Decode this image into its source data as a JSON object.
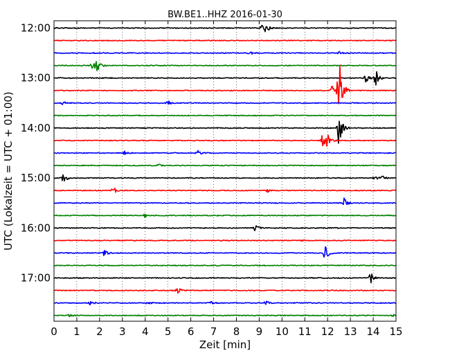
{
  "chart_data": {
    "type": "line",
    "title": "BW.BE1..HHZ 2016-01-30",
    "xlabel": "Zeit  [min]",
    "ylabel": "UTC (Lokalzeit = UTC + 01:00)",
    "xlim": [
      0,
      15
    ],
    "x_ticks": [
      "0",
      "1",
      "2",
      "3",
      "4",
      "5",
      "6",
      "7",
      "8",
      "9",
      "10",
      "11",
      "12",
      "13",
      "14",
      "15"
    ],
    "y_tick_labels": [
      "12:00",
      "13:00",
      "14:00",
      "15:00",
      "16:00",
      "17:00"
    ],
    "grid": true,
    "trace_colors": [
      "#000000",
      "#ff0000",
      "#0000ff",
      "#008000"
    ],
    "traces_per_hour": 4,
    "start_time": "12:00",
    "minutes_per_trace": 15,
    "traces": [
      {
        "start": "12:00",
        "events": [
          {
            "x": 9.1,
            "amp": 0.5
          },
          {
            "x": 9.3,
            "amp": 0.6
          }
        ]
      },
      {
        "start": "12:15",
        "events": []
      },
      {
        "start": "12:30",
        "events": [
          {
            "x": 8.6,
            "amp": 0.3
          },
          {
            "x": 12.5,
            "amp": 0.2
          }
        ]
      },
      {
        "start": "12:45",
        "events": [
          {
            "x": 1.7,
            "amp": 0.6
          },
          {
            "x": 1.9,
            "amp": 1.0
          }
        ]
      },
      {
        "start": "13:00",
        "events": [
          {
            "x": 13.7,
            "amp": 0.8
          },
          {
            "x": 14.1,
            "amp": 1.4
          }
        ]
      },
      {
        "start": "13:15",
        "events": [
          {
            "x": 12.2,
            "amp": 0.7
          },
          {
            "x": 12.5,
            "amp": 6.0
          }
        ]
      },
      {
        "start": "13:30",
        "events": [
          {
            "x": 0.4,
            "amp": 0.3
          },
          {
            "x": 5.0,
            "amp": 0.4
          }
        ]
      },
      {
        "start": "13:45",
        "events": []
      },
      {
        "start": "14:00",
        "events": [
          {
            "x": 12.5,
            "amp": 3.0
          }
        ]
      },
      {
        "start": "14:15",
        "events": [
          {
            "x": 11.8,
            "amp": 1.2
          },
          {
            "x": 12.0,
            "amp": 0.8
          }
        ]
      },
      {
        "start": "14:30",
        "events": [
          {
            "x": 3.1,
            "amp": 0.25
          },
          {
            "x": 6.3,
            "amp": 0.4
          }
        ]
      },
      {
        "start": "14:45",
        "events": [
          {
            "x": 4.6,
            "amp": 0.2
          }
        ]
      },
      {
        "start": "15:00",
        "events": [
          {
            "x": 0.4,
            "amp": 0.8
          },
          {
            "x": 14.1,
            "amp": 0.3
          },
          {
            "x": 14.4,
            "amp": 0.3
          }
        ]
      },
      {
        "start": "15:15",
        "events": [
          {
            "x": 2.6,
            "amp": 0.6
          },
          {
            "x": 9.4,
            "amp": 0.4
          }
        ]
      },
      {
        "start": "15:30",
        "events": [
          {
            "x": 12.7,
            "amp": 0.9
          }
        ]
      },
      {
        "start": "15:45",
        "events": [
          {
            "x": 4.0,
            "amp": 0.3
          }
        ]
      },
      {
        "start": "16:00",
        "events": [
          {
            "x": 8.8,
            "amp": 0.5
          }
        ]
      },
      {
        "start": "16:15",
        "events": [
          {
            "x": 10.9,
            "amp": 0.15
          }
        ]
      },
      {
        "start": "16:30",
        "events": [
          {
            "x": 2.2,
            "amp": 0.5
          },
          {
            "x": 11.9,
            "amp": 1.2
          }
        ]
      },
      {
        "start": "16:45",
        "events": []
      },
      {
        "start": "17:00",
        "events": [
          {
            "x": 13.9,
            "amp": 0.9
          }
        ]
      },
      {
        "start": "17:15",
        "events": [
          {
            "x": 5.4,
            "amp": 0.6
          }
        ]
      },
      {
        "start": "17:30",
        "events": [
          {
            "x": 1.6,
            "amp": 0.3
          },
          {
            "x": 4.1,
            "amp": 0.2
          },
          {
            "x": 6.9,
            "amp": 0.2
          },
          {
            "x": 9.3,
            "amp": 0.3
          }
        ]
      },
      {
        "start": "17:45",
        "events": [
          {
            "x": 0.7,
            "amp": 0.2
          },
          {
            "x": 14.9,
            "amp": 0.2
          }
        ]
      }
    ]
  }
}
